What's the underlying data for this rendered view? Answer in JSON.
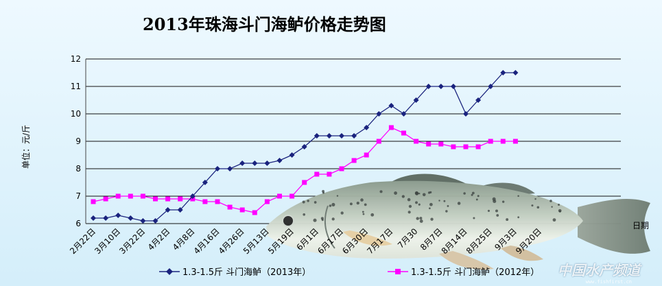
{
  "chart_data": {
    "type": "line",
    "title": "2013年珠海斗门海鲈价格走势图",
    "ylabel": "单位：元/斤",
    "xlabel": "日期",
    "ylim": [
      6,
      12
    ],
    "yticks": [
      6,
      7,
      8,
      9,
      10,
      11,
      12
    ],
    "grid": true,
    "legend_position": "bottom",
    "x_ticks": [
      "2月22日",
      "3月10日",
      "3月22日",
      "4月2日",
      "4月8日",
      "4月16日",
      "4月26日",
      "5月13日",
      "5月19日",
      "6月1日",
      "6月17日",
      "6月30日",
      "7月17日",
      "7月30",
      "8月7日",
      "8月14日",
      "8月25日",
      "9月3日",
      "9月20日"
    ],
    "series": [
      {
        "name": "1.3-1.5斤 斗门海鲈（2013年）",
        "color": "#1a237e",
        "marker": "diamond",
        "values": [
          6.2,
          6.2,
          6.3,
          6.2,
          6.1,
          6.1,
          6.5,
          6.5,
          7.0,
          7.5,
          8.0,
          8.0,
          8.2,
          8.2,
          8.2,
          8.3,
          8.5,
          8.8,
          9.2,
          9.2,
          9.2,
          9.2,
          9.5,
          10.0,
          10.3,
          10.0,
          10.5,
          11.0,
          11.0,
          11.0,
          10.0,
          10.5,
          11.0,
          11.5,
          11.5
        ]
      },
      {
        "name": "1.3-1.5斤 斗门海鲈（2012年）",
        "color": "#ff00ff",
        "marker": "square",
        "values": [
          6.8,
          6.9,
          7.0,
          7.0,
          7.0,
          6.9,
          6.9,
          6.9,
          6.9,
          6.8,
          6.8,
          6.6,
          6.5,
          6.4,
          6.8,
          7.0,
          7.0,
          7.5,
          7.8,
          7.8,
          8.0,
          8.3,
          8.5,
          9.0,
          9.5,
          9.3,
          9.0,
          8.9,
          8.9,
          8.8,
          8.8,
          8.8,
          9.0,
          9.0,
          9.0
        ]
      }
    ]
  },
  "watermark": {
    "text": "中国水产频道",
    "url": "www.fishfirst.cn"
  }
}
